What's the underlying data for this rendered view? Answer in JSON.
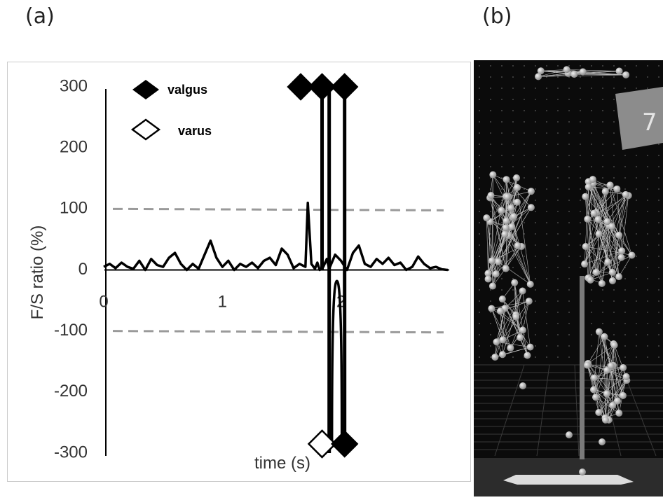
{
  "panels": {
    "a": "(a)",
    "b": "(b)"
  },
  "chart_data": {
    "type": "line",
    "ylabel": "F/S ratio (%)",
    "xlabel": "time (s)",
    "xlim": [
      0,
      2.9
    ],
    "ylim": [
      -300,
      300
    ],
    "yticks": [
      "300",
      "200",
      "100",
      "0",
      "-100",
      "-200",
      "-300"
    ],
    "ytick_values": [
      300,
      200,
      100,
      0,
      -100,
      -200,
      -300
    ],
    "xticks": [
      "0",
      "1",
      "2"
    ],
    "xtick_values": [
      0,
      1,
      2
    ],
    "threshold_lines": [
      100,
      -100
    ],
    "legend": {
      "valgus": "valgus",
      "varus": "varus"
    },
    "series": [
      {
        "x": [
          0,
          0.05,
          0.1,
          0.15,
          0.2,
          0.25,
          0.3,
          0.35,
          0.4,
          0.45,
          0.5,
          0.55,
          0.6,
          0.65,
          0.7,
          0.75,
          0.8,
          0.85,
          0.9,
          0.95,
          1.0,
          1.05,
          1.1,
          1.15,
          1.2,
          1.25,
          1.3,
          1.35,
          1.4,
          1.45,
          1.5,
          1.55,
          1.6,
          1.65,
          1.7,
          1.72,
          1.75,
          1.78,
          1.8,
          1.82,
          1.85,
          1.88,
          1.9,
          1.95,
          2.0,
          2.05,
          2.1,
          2.15,
          2.2,
          2.25,
          2.3,
          2.35,
          2.4,
          2.45,
          2.5,
          2.55,
          2.6,
          2.65,
          2.7,
          2.75,
          2.8,
          2.85,
          2.9
        ],
        "values": [
          5,
          10,
          3,
          12,
          5,
          2,
          15,
          0,
          18,
          8,
          5,
          20,
          28,
          10,
          0,
          10,
          2,
          25,
          48,
          20,
          5,
          15,
          0,
          10,
          5,
          12,
          3,
          15,
          20,
          8,
          35,
          25,
          3,
          10,
          5,
          110,
          10,
          2,
          12,
          0,
          5,
          18,
          2,
          25,
          15,
          0,
          28,
          40,
          10,
          5,
          18,
          10,
          20,
          8,
          12,
          0,
          5,
          22,
          10,
          3,
          5,
          1,
          0
        ]
      }
    ],
    "spikes": [
      {
        "x": 1.84,
        "from": 0,
        "to": 300
      },
      {
        "x": 1.9,
        "from": 300,
        "to": -300
      },
      {
        "x": 2.03,
        "from": 300,
        "to": -300
      }
    ],
    "dip": {
      "x_start": 1.9,
      "x_end": 2.03,
      "min": -18
    },
    "valgus_markers": [
      {
        "x": 1.66,
        "y": 300
      },
      {
        "x": 1.84,
        "y": 300
      },
      {
        "x": 2.03,
        "y": 300
      },
      {
        "x": 2.03,
        "y": -285
      }
    ],
    "varus_markers": [
      {
        "x": 1.84,
        "y": -285
      }
    ]
  }
}
